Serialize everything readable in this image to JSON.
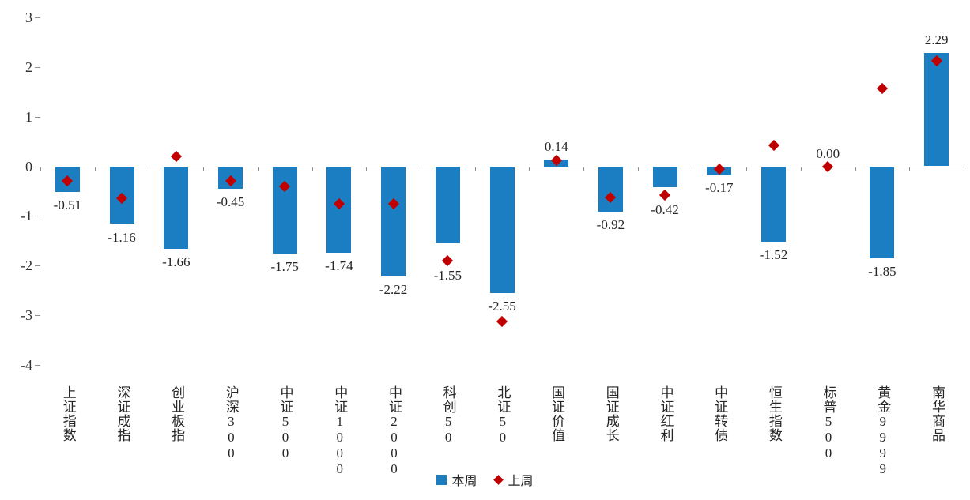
{
  "chart_data": {
    "type": "bar",
    "title": "",
    "categories": [
      "上证指数",
      "深证成指",
      "创业板指",
      "沪深300",
      "中证500",
      "中证1000",
      "中证2000",
      "科创50",
      "北证50",
      "国证价值",
      "国证成长",
      "中证红利",
      "中证转债",
      "恒生指数",
      "标普500",
      "黄金9999",
      "南华商品"
    ],
    "series": [
      {
        "name": "本周",
        "type": "bar",
        "color": "#1b7ec2",
        "values": [
          -0.51,
          -1.16,
          -1.66,
          -0.45,
          -1.75,
          -1.74,
          -2.22,
          -1.55,
          -2.55,
          0.14,
          -0.92,
          -0.42,
          -0.17,
          -1.52,
          0.0,
          -1.85,
          2.29
        ],
        "data_labels": [
          "-0.51",
          "-1.16",
          "-1.66",
          "-0.45",
          "-1.75",
          "-1.74",
          "-2.22",
          "-1.55",
          "-2.55",
          "0.14",
          "-0.92",
          "-0.42",
          "-0.17",
          "-1.52",
          "0.00",
          "-1.85",
          "2.29"
        ]
      },
      {
        "name": "上周",
        "type": "scatter",
        "marker": "diamond",
        "color": "#c00000",
        "values": [
          -0.3,
          -0.65,
          0.2,
          -0.3,
          -0.4,
          -0.75,
          -0.75,
          -1.9,
          -3.13,
          0.12,
          -0.62,
          -0.58,
          -0.05,
          0.42,
          0.0,
          1.57,
          2.12
        ]
      }
    ],
    "ylim": [
      -4,
      3
    ],
    "y_ticks": [
      3,
      2,
      1,
      0,
      -1,
      -2,
      -3,
      -4
    ],
    "grid": false,
    "legend_position": "bottom",
    "axis_color": "#a3a3a3"
  }
}
